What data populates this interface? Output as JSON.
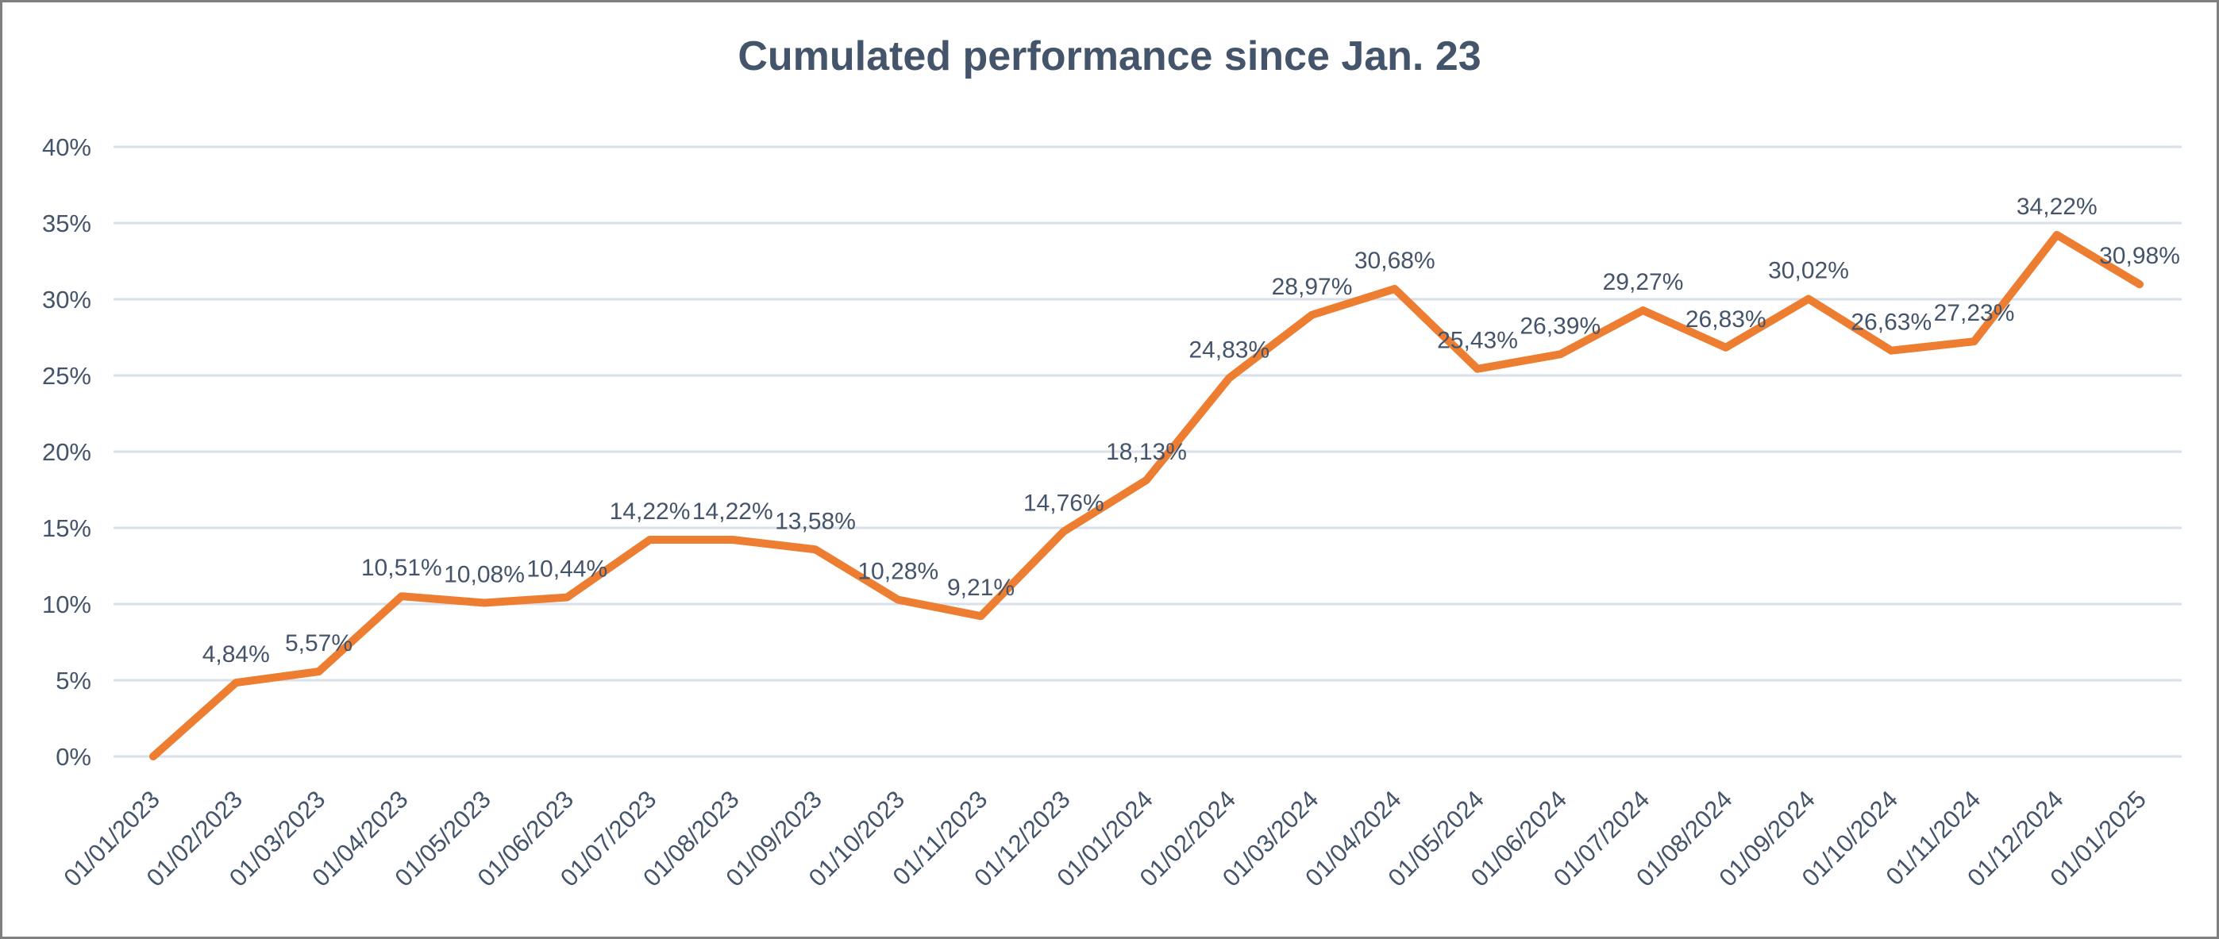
{
  "chart_data": {
    "type": "line",
    "title": "Cumulated performance since Jan. 23",
    "series_name": "Cumulated performance",
    "categories": [
      "01/01/2023",
      "01/02/2023",
      "01/03/2023",
      "01/04/2023",
      "01/05/2023",
      "01/06/2023",
      "01/07/2023",
      "01/08/2023",
      "01/09/2023",
      "01/10/2023",
      "01/11/2023",
      "01/12/2023",
      "01/01/2024",
      "01/02/2024",
      "01/03/2024",
      "01/04/2024",
      "01/05/2024",
      "01/06/2024",
      "01/07/2024",
      "01/08/2024",
      "01/09/2024",
      "01/10/2024",
      "01/11/2024",
      "01/12/2024",
      "01/01/2025"
    ],
    "values": [
      0,
      4.84,
      5.57,
      10.51,
      10.08,
      10.44,
      14.22,
      14.22,
      13.58,
      10.28,
      9.21,
      14.76,
      18.13,
      24.83,
      28.97,
      30.68,
      25.43,
      26.39,
      29.27,
      26.83,
      30.02,
      26.63,
      27.23,
      34.22,
      30.98
    ],
    "data_labels": [
      "",
      "4,84%",
      "5,57%",
      "10,51%",
      "10,08%",
      "10,44%",
      "14,22%",
      "14,22%",
      "13,58%",
      "10,28%",
      "9,21%",
      "14,76%",
      "18,13%",
      "24,83%",
      "28,97%",
      "30,68%",
      "25,43%",
      "26,39%",
      "29,27%",
      "26,83%",
      "30,02%",
      "26,63%",
      "27,23%",
      "34,22%",
      "30,98%"
    ],
    "xlabel": "",
    "ylabel": "",
    "ylim": [
      0,
      40
    ],
    "ytick_step": 5,
    "ytick_labels": [
      "0%",
      "5%",
      "10%",
      "15%",
      "20%",
      "25%",
      "30%",
      "35%",
      "40%"
    ],
    "grid": "horizontal-only",
    "legend": "none",
    "colors": {
      "line": "#ED7D31",
      "text": "#44546A",
      "gridline": "#DAE0EB",
      "background": "#FFFFFF",
      "frame_border": "#7F7F7F"
    }
  }
}
